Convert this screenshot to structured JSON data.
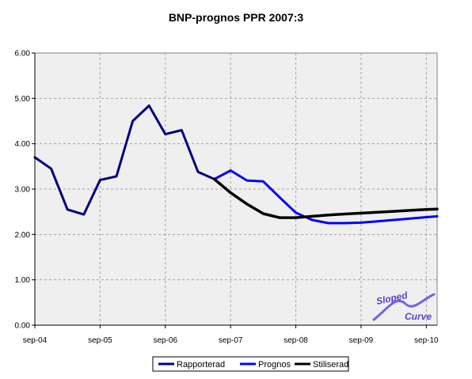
{
  "chart_data": {
    "type": "line",
    "title": "BNP-prognos PPR 2007:3",
    "xlabel": "",
    "ylabel": "",
    "ylim": [
      0,
      6
    ],
    "yticks": [
      "0.00",
      "1.00",
      "2.00",
      "3.00",
      "4.00",
      "5.00",
      "6.00"
    ],
    "xlim": [
      2004.667,
      2010.833
    ],
    "xticks": [
      {
        "label": "sep-04",
        "value": 2004.667
      },
      {
        "label": "sep-05",
        "value": 2005.667
      },
      {
        "label": "sep-06",
        "value": 2006.667
      },
      {
        "label": "sep-07",
        "value": 2007.667
      },
      {
        "label": "sep-08",
        "value": 2008.667
      },
      {
        "label": "sep-09",
        "value": 2009.667
      },
      {
        "label": "sep-10",
        "value": 2010.667
      }
    ],
    "grid": true,
    "legend_position": "bottom",
    "series": [
      {
        "name": "Rapporterad",
        "color": "#000080",
        "x": [
          2004.667,
          2004.917,
          2005.167,
          2005.417,
          2005.667,
          2005.917,
          2006.167,
          2006.417,
          2006.667,
          2006.917,
          2007.167,
          2007.417
        ],
        "values": [
          3.7,
          3.45,
          2.55,
          2.44,
          3.2,
          3.28,
          4.5,
          4.84,
          4.21,
          4.3,
          3.38,
          3.22
        ]
      },
      {
        "name": "Prognos",
        "color": "#0000ff",
        "x": [
          2007.417,
          2007.667,
          2007.917,
          2008.167,
          2008.417,
          2008.667,
          2008.917,
          2009.167,
          2009.417,
          2009.667,
          2009.917,
          2010.167,
          2010.417,
          2010.667,
          2010.833
        ],
        "values": [
          3.22,
          3.41,
          3.19,
          3.17,
          2.82,
          2.48,
          2.32,
          2.25,
          2.25,
          2.26,
          2.29,
          2.32,
          2.35,
          2.38,
          2.4
        ]
      },
      {
        "name": "Stiliserad",
        "color": "#000000",
        "x": [
          2007.417,
          2007.667,
          2007.917,
          2008.167,
          2008.417,
          2008.667,
          2008.917,
          2009.167,
          2009.417,
          2009.667,
          2009.917,
          2010.167,
          2010.417,
          2010.667,
          2010.833
        ],
        "values": [
          3.22,
          2.92,
          2.67,
          2.46,
          2.37,
          2.37,
          2.4,
          2.43,
          2.45,
          2.47,
          2.49,
          2.51,
          2.53,
          2.55,
          2.56
        ]
      }
    ],
    "logo": {
      "line1": "Sloped",
      "line2": "Curve"
    }
  }
}
